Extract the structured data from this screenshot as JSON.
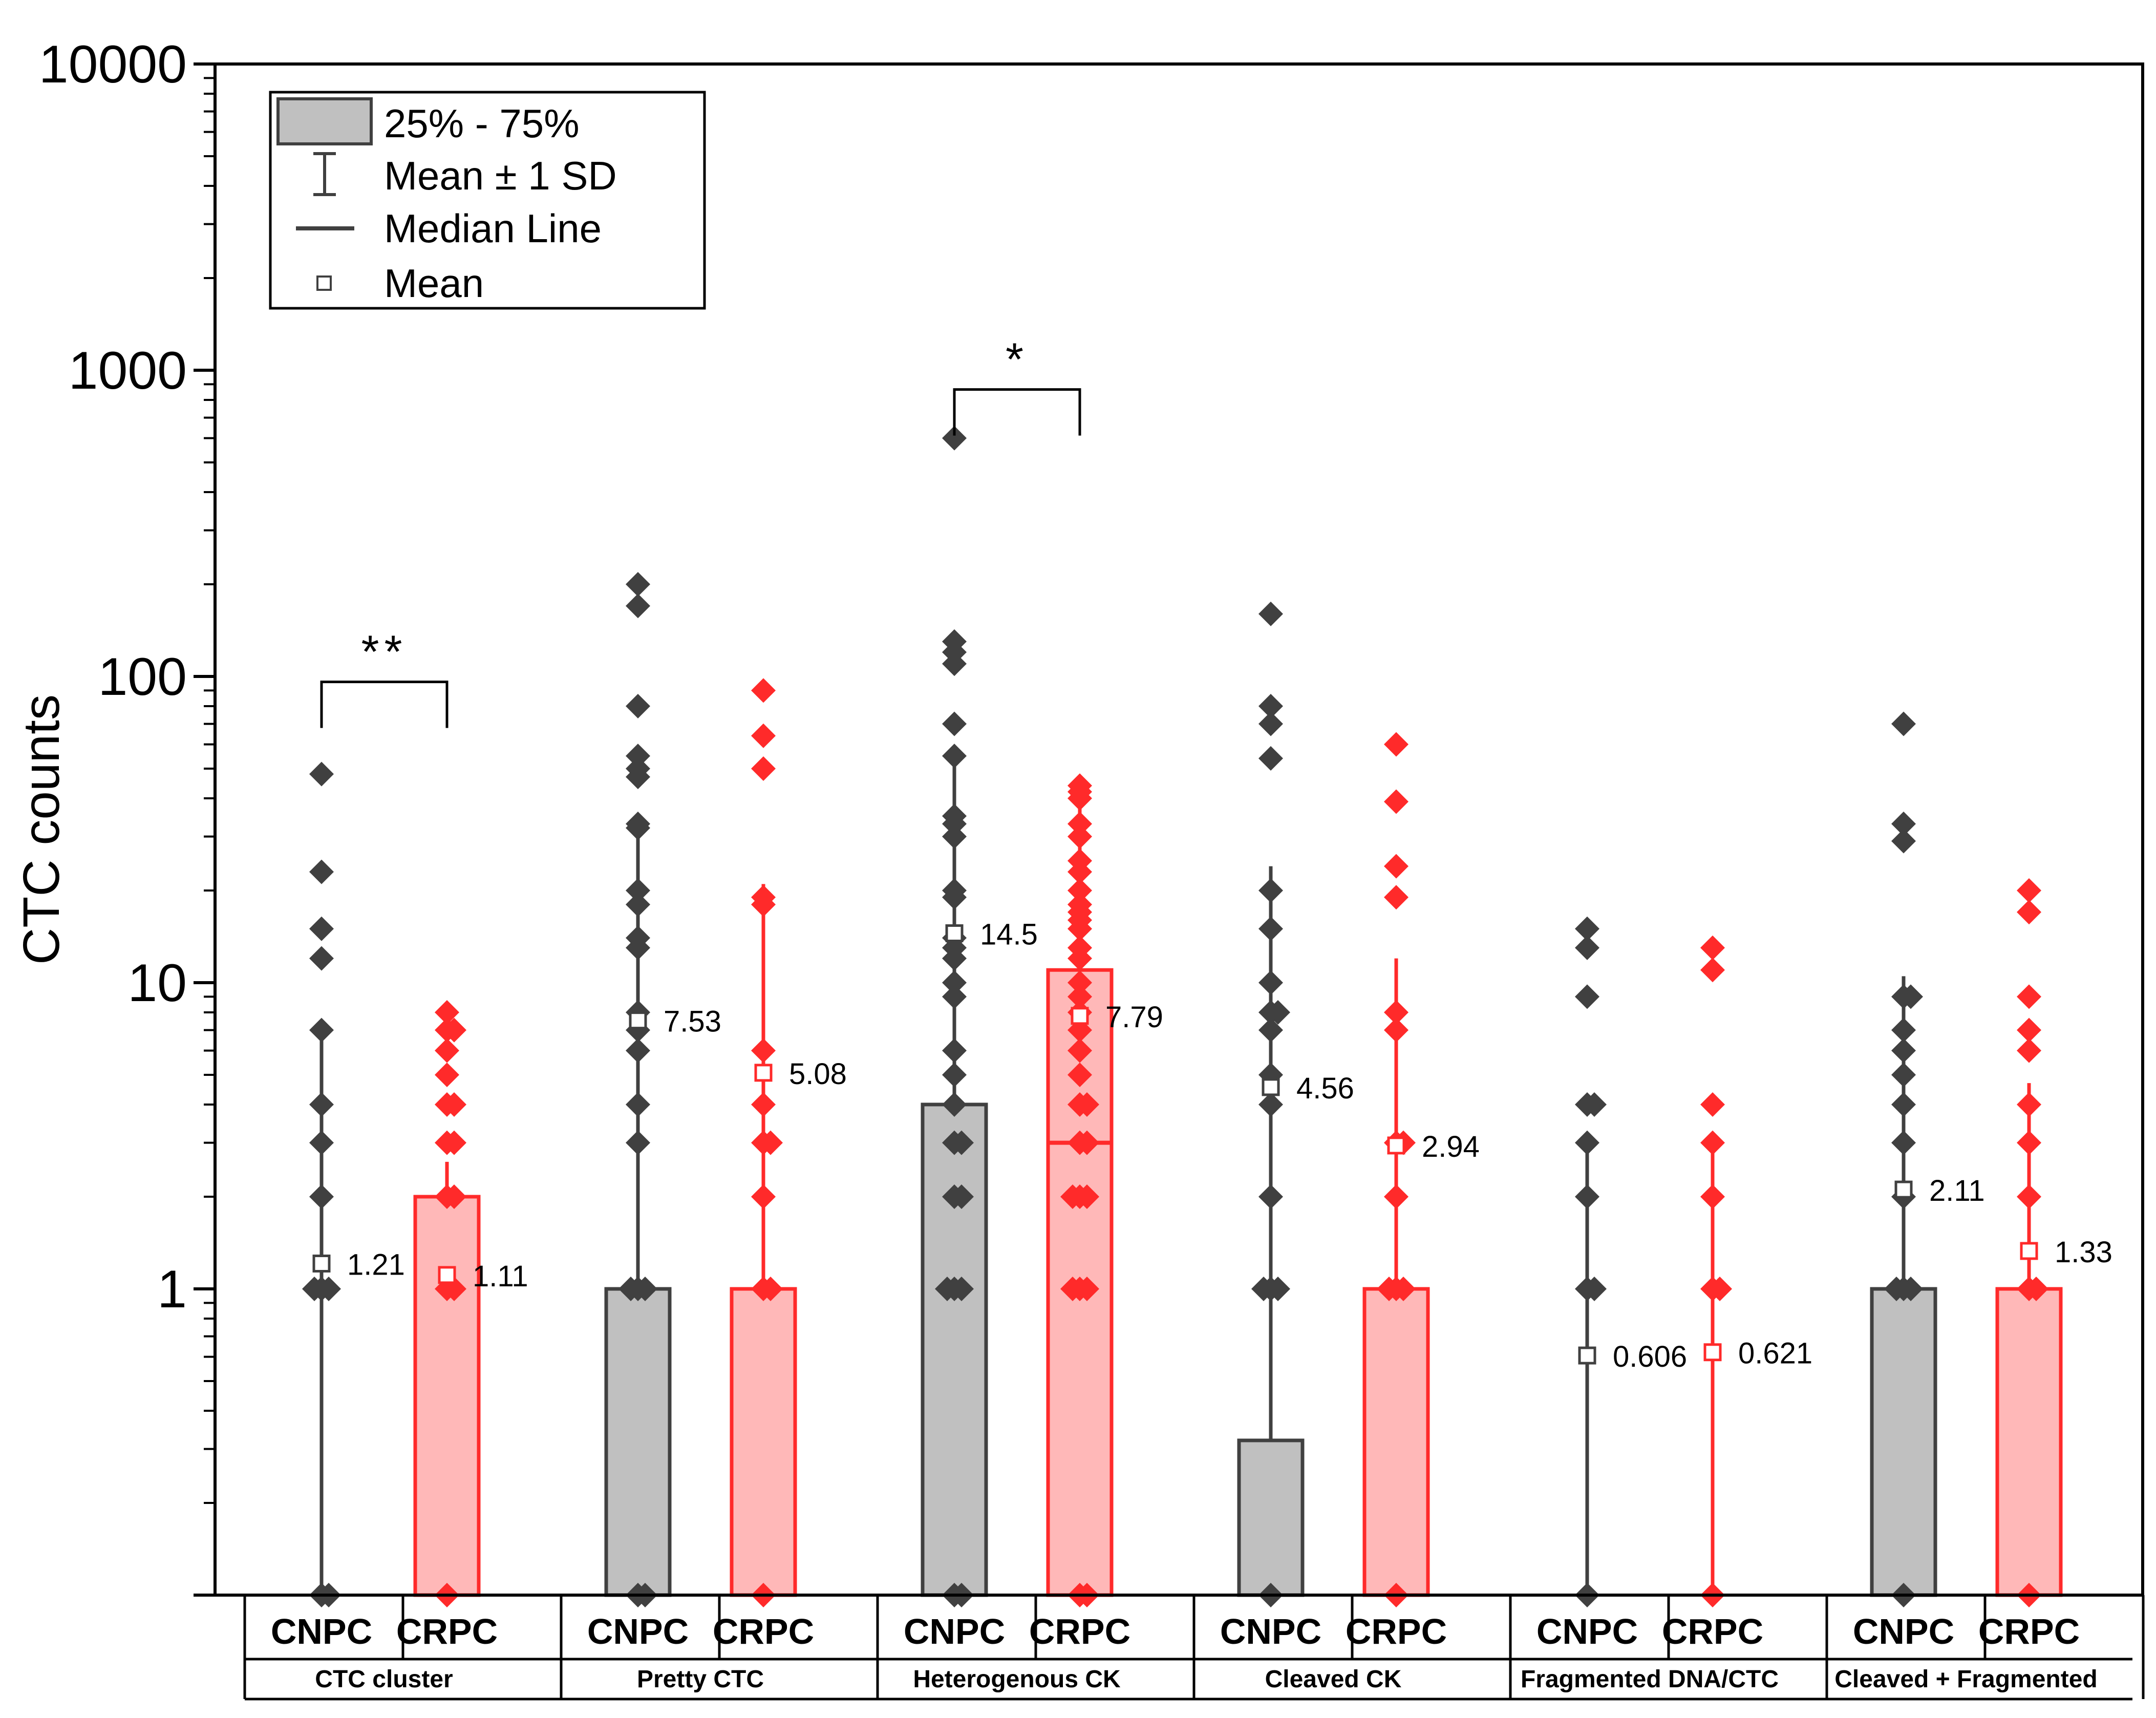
{
  "chart_data": {
    "type": "box",
    "ylabel": "CTC counts",
    "yscale": "log",
    "ylim": [
      0.1,
      10000
    ],
    "yticks": [
      {
        "value": 1,
        "label": "1"
      },
      {
        "value": 10,
        "label": "10"
      },
      {
        "value": 100,
        "label": "100"
      },
      {
        "value": 1000,
        "label": "1000"
      },
      {
        "value": 10000,
        "label": "10000"
      }
    ],
    "legend": {
      "position": "top-left",
      "items": [
        {
          "kind": "box",
          "label": "25% - 75%"
        },
        {
          "kind": "whisker",
          "label": "Mean ± 1 SD"
        },
        {
          "kind": "line",
          "label": "Median Line"
        },
        {
          "kind": "square",
          "label": "Mean"
        }
      ]
    },
    "colors": {
      "CNPC": "#404040",
      "CRPC": "#ff2a2a",
      "CNPC_fill": "#c0c0c0",
      "CRPC_fill": "#ffb8b8"
    },
    "groups": [
      {
        "name": "CTC cluster",
        "significance": "**",
        "boxes": [
          {
            "label": "CNPC",
            "color": "CNPC",
            "q1": 0.1,
            "q3": 0.1,
            "median": 0.1,
            "mean": 1.21,
            "mean_label": "1.21",
            "sd_low": 0.1,
            "sd_high": 7,
            "points": [
              48,
              23,
              15,
              12,
              7,
              4,
              3,
              2,
              1,
              1,
              1,
              0.1,
              0.1
            ]
          },
          {
            "label": "CRPC",
            "color": "CRPC",
            "q1": 0.1,
            "q3": 2,
            "median": 0.1,
            "mean": 1.11,
            "mean_label": "1.11",
            "sd_low": 0.1,
            "sd_high": 2.6,
            "points": [
              8,
              7,
              7,
              6,
              5,
              4,
              4,
              3,
              3,
              2,
              2,
              1,
              1,
              0.1
            ]
          }
        ]
      },
      {
        "name": "Pretty CTC",
        "significance": "",
        "boxes": [
          {
            "label": "CNPC",
            "color": "CNPC",
            "q1": 0.1,
            "q3": 1,
            "median": 0.1,
            "mean": 7.53,
            "mean_label": "7.53",
            "sd_low": 0.1,
            "sd_high": 33,
            "points": [
              200,
              170,
              80,
              55,
              50,
              47,
              33,
              32,
              20,
              18,
              14,
              13,
              8,
              7,
              6,
              4,
              3,
              1,
              1,
              1,
              0.1,
              0.1
            ]
          },
          {
            "label": "CRPC",
            "color": "CRPC",
            "q1": 0.1,
            "q3": 1,
            "median": 0.1,
            "mean": 5.08,
            "mean_label": "5.08",
            "sd_low": 0.1,
            "sd_high": 21,
            "points": [
              90,
              64,
              50,
              19,
              18,
              6,
              4,
              3,
              3,
              2,
              1,
              1,
              0.1
            ]
          }
        ]
      },
      {
        "name": "Heterogenous CK",
        "significance": "*",
        "boxes": [
          {
            "label": "CNPC",
            "color": "CNPC",
            "q1": 0.1,
            "q3": 4,
            "median": 0.1,
            "mean": 14.5,
            "mean_label": "14.5",
            "sd_low": 0.1,
            "sd_high": 52,
            "points": [
              600,
              130,
              120,
              110,
              70,
              55,
              35,
              33,
              30,
              20,
              19,
              14,
              13,
              12,
              10,
              9,
              6,
              5,
              4,
              3,
              3,
              2,
              2,
              1,
              1,
              1,
              0.1,
              0.1
            ]
          },
          {
            "label": "CRPC",
            "color": "CRPC",
            "q1": 0.1,
            "q3": 11,
            "median": 3,
            "mean": 7.79,
            "mean_label": "7.79",
            "sd_low": 0.1,
            "sd_high": 38,
            "points": [
              44,
              42,
              40,
              33,
              30,
              25,
              23,
              20,
              18,
              17,
              16,
              15,
              13,
              12,
              10,
              9,
              8,
              7,
              6,
              5,
              4,
              4,
              3,
              3,
              2,
              2,
              2,
              1,
              1,
              1,
              0.1,
              0.1
            ]
          }
        ]
      },
      {
        "name": "Cleaved CK",
        "significance": "",
        "boxes": [
          {
            "label": "CNPC",
            "color": "CNPC",
            "q1": 0.1,
            "q3": 0.32,
            "median": 0.1,
            "mean": 4.56,
            "mean_label": "4.56",
            "sd_low": 0.1,
            "sd_high": 24,
            "points": [
              160,
              80,
              70,
              54,
              20,
              15,
              10,
              8,
              8,
              7,
              5,
              4,
              2,
              1,
              1,
              1,
              0.1
            ]
          },
          {
            "label": "CRPC",
            "color": "CRPC",
            "q1": 0.1,
            "q3": 1,
            "median": 0.1,
            "mean": 2.94,
            "mean_label": "2.94",
            "sd_low": 0.1,
            "sd_high": 12,
            "points": [
              60,
              39,
              24,
              19,
              8,
              7,
              3,
              3,
              2,
              1,
              1,
              1,
              0.1
            ]
          }
        ]
      },
      {
        "name": "Fragmented DNA/CTC",
        "significance": "",
        "boxes": [
          {
            "label": "CNPC",
            "color": "CNPC",
            "q1": 0.1,
            "q3": 0.1,
            "median": 0.1,
            "mean": 0.606,
            "mean_label": "0.606",
            "sd_low": 0.1,
            "sd_high": 3,
            "points": [
              15,
              13,
              9,
              4,
              4,
              3,
              2,
              1,
              1,
              0.1
            ]
          },
          {
            "label": "CRPC",
            "color": "CRPC",
            "q1": 0.1,
            "q3": 0.1,
            "median": 0.1,
            "mean": 0.621,
            "mean_label": "0.621",
            "sd_low": 0.1,
            "sd_high": 3,
            "points": [
              13,
              11,
              4,
              3,
              2,
              1,
              1,
              0.1
            ]
          }
        ]
      },
      {
        "name": "Cleaved + Fragmented",
        "significance": "",
        "boxes": [
          {
            "label": "CNPC",
            "color": "CNPC",
            "q1": 0.1,
            "q3": 1,
            "median": 0.1,
            "mean": 2.11,
            "mean_label": "2.11",
            "sd_low": 0.1,
            "sd_high": 10.5,
            "points": [
              70,
              33,
              29,
              9,
              9,
              7,
              6,
              5,
              4,
              3,
              2,
              1,
              1,
              1,
              0.1
            ]
          },
          {
            "label": "CRPC",
            "color": "CRPC",
            "q1": 0.1,
            "q3": 1,
            "median": 0.1,
            "mean": 1.33,
            "mean_label": "1.33",
            "sd_low": 0.1,
            "sd_high": 4.7,
            "points": [
              20,
              17,
              9,
              7,
              6,
              4,
              3,
              2,
              1,
              1,
              0.1
            ]
          }
        ]
      }
    ]
  }
}
